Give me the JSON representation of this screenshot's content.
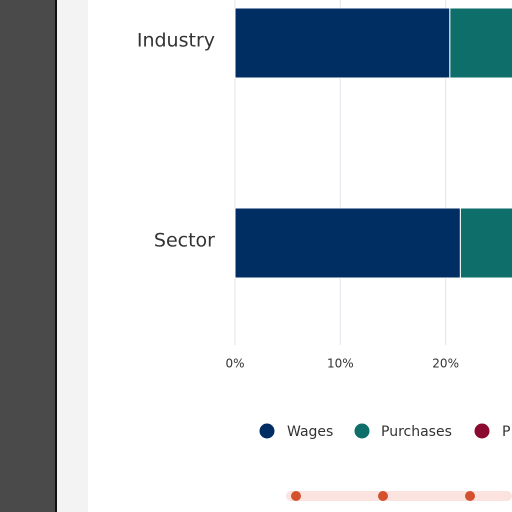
{
  "chart_data": {
    "type": "stacked-barh",
    "categories": [
      "Industry",
      "Sector"
    ],
    "series": [
      {
        "name": "Wages",
        "color": "#002d62",
        "values": [
          20.4,
          21.4
        ]
      },
      {
        "name": "Purchases",
        "color": "#0e6e6a",
        "values": [
          30,
          30
        ]
      },
      {
        "name": "P",
        "color": "#8a0b2f",
        "values": [
          null,
          null
        ]
      }
    ],
    "xlim": [
      0,
      26.3
    ],
    "xticks": [
      {
        "value": 0,
        "label": "0%"
      },
      {
        "value": 10,
        "label": "10%"
      },
      {
        "value": 20,
        "label": "20%"
      }
    ],
    "grid": true
  }
}
